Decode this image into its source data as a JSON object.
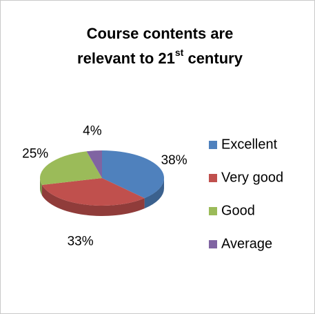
{
  "chart_data": {
    "type": "pie3d",
    "title": [
      "Course contents are",
      "relevant to 21",
      "st",
      " century"
    ],
    "categories": [
      "Excellent",
      "Very good",
      "Good",
      "Average"
    ],
    "values": [
      38,
      33,
      25,
      4
    ],
    "value_labels": [
      "38%",
      "33%",
      "25%",
      "4%"
    ],
    "colors": [
      "#4f81bd",
      "#c0504d",
      "#9bbb59",
      "#8064a2"
    ],
    "legend": "right"
  }
}
